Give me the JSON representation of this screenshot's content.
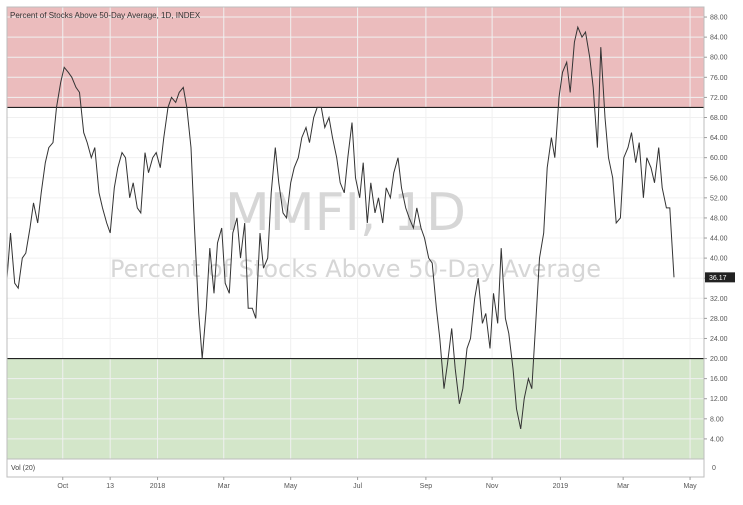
{
  "chart_data": {
    "type": "line",
    "title": "Percent of Stocks Above 50-Day Average, 1D, INDEX",
    "watermark": {
      "symbol": "MMFI, 1D",
      "description": "Percent of Stocks Above 50-Day Average"
    },
    "ylim": [
      0,
      90
    ],
    "y_ticks": [
      4,
      8,
      12,
      16,
      20,
      24,
      28,
      32,
      36,
      40,
      44,
      48,
      52,
      56,
      60,
      64,
      68,
      72,
      76,
      80,
      84,
      88
    ],
    "y_tick_labels": [
      "4.00",
      "8.00",
      "12.00",
      "16.00",
      "20.00",
      "24.00",
      "28.00",
      "32.00",
      "36.00",
      "40.00",
      "44.00",
      "48.00",
      "52.00",
      "56.00",
      "60.00",
      "64.00",
      "68.00",
      "72.00",
      "76.00",
      "80.00",
      "84.00",
      "88.00"
    ],
    "x_ticks": [
      {
        "label": "Oct",
        "t": 0.08
      },
      {
        "label": "13",
        "t": 0.148
      },
      {
        "label": "2018",
        "t": 0.216
      },
      {
        "label": "Mar",
        "t": 0.311
      },
      {
        "label": "May",
        "t": 0.407
      },
      {
        "label": "Jul",
        "t": 0.503
      },
      {
        "label": "Sep",
        "t": 0.601
      },
      {
        "label": "Nov",
        "t": 0.696
      },
      {
        "label": "2019",
        "t": 0.794
      },
      {
        "label": "Mar",
        "t": 0.884
      },
      {
        "label": "May",
        "t": 0.98
      }
    ],
    "bands": [
      {
        "from": 70,
        "to": 90,
        "color": "#ebbcbd"
      },
      {
        "from": 0,
        "to": 20,
        "color": "#d3e6c9"
      }
    ],
    "reference_lines": [
      70,
      20
    ],
    "last_value_label": "36.17",
    "line_color": "#333333",
    "series": [
      {
        "points": [
          [
            0.0,
            36
          ],
          [
            0.005,
            45
          ],
          [
            0.011,
            35
          ],
          [
            0.016,
            34
          ],
          [
            0.022,
            40
          ],
          [
            0.027,
            41
          ],
          [
            0.033,
            46
          ],
          [
            0.038,
            51
          ],
          [
            0.044,
            47
          ],
          [
            0.049,
            53
          ],
          [
            0.055,
            59
          ],
          [
            0.06,
            62
          ],
          [
            0.066,
            63
          ],
          [
            0.071,
            70
          ],
          [
            0.077,
            75
          ],
          [
            0.082,
            78
          ],
          [
            0.088,
            77
          ],
          [
            0.093,
            76
          ],
          [
            0.099,
            74
          ],
          [
            0.104,
            73
          ],
          [
            0.11,
            65
          ],
          [
            0.115,
            63
          ],
          [
            0.121,
            60
          ],
          [
            0.126,
            62
          ],
          [
            0.132,
            53
          ],
          [
            0.137,
            50
          ],
          [
            0.143,
            47
          ],
          [
            0.148,
            45
          ],
          [
            0.154,
            54
          ],
          [
            0.159,
            58
          ],
          [
            0.165,
            61
          ],
          [
            0.17,
            60
          ],
          [
            0.176,
            52
          ],
          [
            0.181,
            55
          ],
          [
            0.187,
            50
          ],
          [
            0.192,
            49
          ],
          [
            0.198,
            61
          ],
          [
            0.203,
            57
          ],
          [
            0.209,
            60
          ],
          [
            0.214,
            61
          ],
          [
            0.22,
            58
          ],
          [
            0.225,
            64
          ],
          [
            0.231,
            70
          ],
          [
            0.236,
            72
          ],
          [
            0.242,
            71
          ],
          [
            0.247,
            73
          ],
          [
            0.253,
            74
          ],
          [
            0.258,
            70
          ],
          [
            0.264,
            62
          ],
          [
            0.269,
            46
          ],
          [
            0.275,
            29
          ],
          [
            0.28,
            20
          ],
          [
            0.286,
            30
          ],
          [
            0.291,
            42
          ],
          [
            0.297,
            33
          ],
          [
            0.302,
            43
          ],
          [
            0.308,
            46
          ],
          [
            0.313,
            35
          ],
          [
            0.319,
            33
          ],
          [
            0.324,
            45
          ],
          [
            0.33,
            48
          ],
          [
            0.335,
            40
          ],
          [
            0.341,
            47
          ],
          [
            0.346,
            30
          ],
          [
            0.352,
            30
          ],
          [
            0.357,
            28
          ],
          [
            0.363,
            45
          ],
          [
            0.368,
            38
          ],
          [
            0.374,
            40
          ],
          [
            0.379,
            53
          ],
          [
            0.385,
            62
          ],
          [
            0.39,
            55
          ],
          [
            0.396,
            49
          ],
          [
            0.401,
            48
          ],
          [
            0.407,
            55
          ],
          [
            0.412,
            58
          ],
          [
            0.418,
            60
          ],
          [
            0.423,
            64
          ],
          [
            0.429,
            66
          ],
          [
            0.434,
            63
          ],
          [
            0.44,
            68
          ],
          [
            0.445,
            70
          ],
          [
            0.451,
            70
          ],
          [
            0.456,
            66
          ],
          [
            0.462,
            68
          ],
          [
            0.467,
            64
          ],
          [
            0.473,
            60
          ],
          [
            0.478,
            55
          ],
          [
            0.484,
            53
          ],
          [
            0.489,
            60
          ],
          [
            0.495,
            67
          ],
          [
            0.5,
            56
          ],
          [
            0.506,
            52
          ],
          [
            0.511,
            59
          ],
          [
            0.517,
            47
          ],
          [
            0.522,
            55
          ],
          [
            0.528,
            49
          ],
          [
            0.533,
            52
          ],
          [
            0.539,
            47
          ],
          [
            0.544,
            54
          ],
          [
            0.55,
            52
          ],
          [
            0.555,
            57
          ],
          [
            0.561,
            60
          ],
          [
            0.566,
            54
          ],
          [
            0.572,
            50
          ],
          [
            0.577,
            48
          ],
          [
            0.583,
            46
          ],
          [
            0.588,
            50
          ],
          [
            0.594,
            46
          ],
          [
            0.599,
            44
          ],
          [
            0.605,
            40
          ],
          [
            0.61,
            39
          ],
          [
            0.616,
            30
          ],
          [
            0.621,
            24
          ],
          [
            0.627,
            14
          ],
          [
            0.632,
            19
          ],
          [
            0.638,
            26
          ],
          [
            0.643,
            18
          ],
          [
            0.649,
            11
          ],
          [
            0.654,
            14
          ],
          [
            0.66,
            22
          ],
          [
            0.665,
            24
          ],
          [
            0.671,
            32
          ],
          [
            0.676,
            36
          ],
          [
            0.682,
            27
          ],
          [
            0.687,
            29
          ],
          [
            0.693,
            22
          ],
          [
            0.698,
            33
          ],
          [
            0.704,
            27
          ],
          [
            0.709,
            42
          ],
          [
            0.715,
            28
          ],
          [
            0.72,
            25
          ],
          [
            0.726,
            18
          ],
          [
            0.731,
            10
          ],
          [
            0.737,
            6
          ],
          [
            0.742,
            12
          ],
          [
            0.748,
            16
          ],
          [
            0.753,
            14
          ],
          [
            0.759,
            28
          ],
          [
            0.764,
            40
          ],
          [
            0.77,
            45
          ],
          [
            0.775,
            58
          ],
          [
            0.781,
            64
          ],
          [
            0.786,
            60
          ],
          [
            0.792,
            72
          ],
          [
            0.797,
            77
          ],
          [
            0.803,
            79
          ],
          [
            0.808,
            73
          ],
          [
            0.814,
            83
          ],
          [
            0.819,
            86
          ],
          [
            0.825,
            84
          ],
          [
            0.83,
            85
          ],
          [
            0.836,
            80
          ],
          [
            0.841,
            74
          ],
          [
            0.847,
            62
          ],
          [
            0.852,
            82
          ],
          [
            0.858,
            68
          ],
          [
            0.863,
            60
          ],
          [
            0.869,
            56
          ],
          [
            0.874,
            47
          ],
          [
            0.88,
            48
          ],
          [
            0.885,
            60
          ],
          [
            0.891,
            62
          ],
          [
            0.896,
            65
          ],
          [
            0.902,
            59
          ],
          [
            0.907,
            63
          ],
          [
            0.913,
            52
          ],
          [
            0.918,
            60
          ],
          [
            0.924,
            58
          ],
          [
            0.929,
            55
          ],
          [
            0.935,
            62
          ],
          [
            0.94,
            54
          ],
          [
            0.946,
            50
          ],
          [
            0.951,
            50
          ],
          [
            0.957,
            36.17
          ]
        ]
      }
    ],
    "volume_panel": {
      "label": "Vol (20)",
      "axis_label": "0"
    }
  }
}
